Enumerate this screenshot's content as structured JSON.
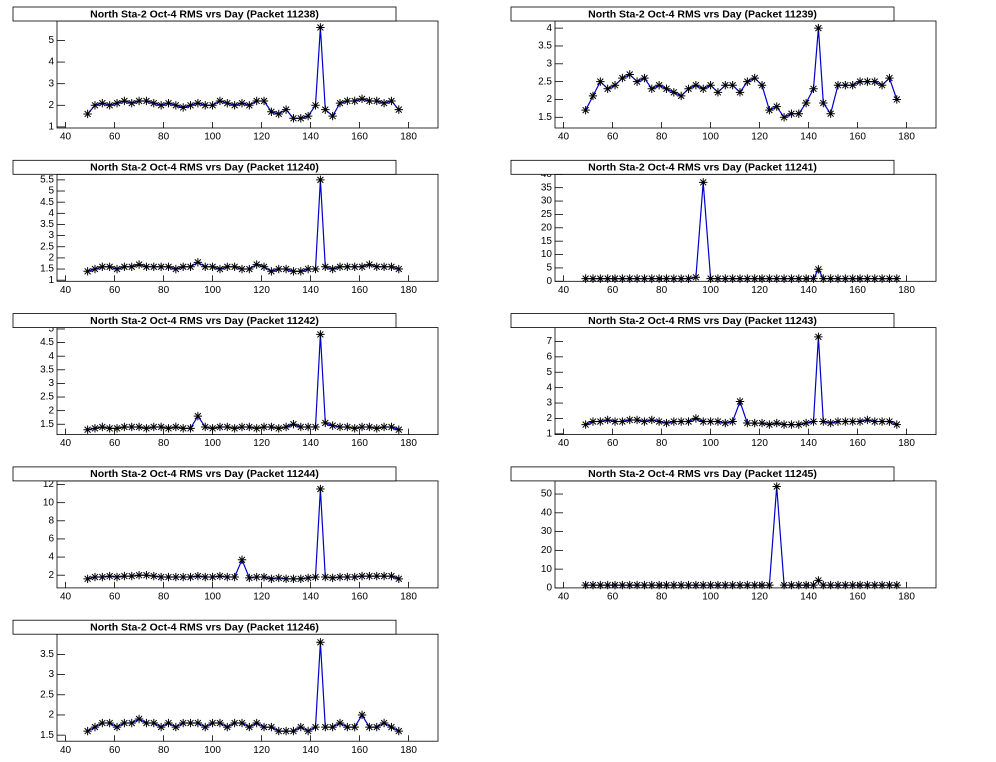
{
  "chart_data": [
    {
      "type": "line",
      "title": "North Sta-2 Oct-4 RMS vrs Day (Packet 11238)",
      "x": [
        49,
        52,
        55,
        58,
        61,
        64,
        67,
        70,
        73,
        76,
        79,
        82,
        85,
        88,
        91,
        94,
        97,
        100,
        103,
        106,
        109,
        112,
        115,
        118,
        121,
        124,
        127,
        130,
        133,
        136,
        139,
        142,
        144,
        146,
        149,
        152,
        155,
        158,
        161,
        164,
        167,
        170,
        173,
        176
      ],
      "values": [
        1.6,
        2.0,
        2.1,
        2.0,
        2.1,
        2.2,
        2.1,
        2.2,
        2.2,
        2.1,
        2.0,
        2.1,
        2.0,
        1.9,
        2.0,
        2.1,
        2.0,
        2.0,
        2.2,
        2.1,
        2.0,
        2.1,
        2.0,
        2.2,
        2.2,
        1.7,
        1.6,
        1.8,
        1.4,
        1.4,
        1.5,
        2.0,
        5.6,
        1.8,
        1.5,
        2.1,
        2.2,
        2.2,
        2.3,
        2.2,
        2.2,
        2.1,
        2.2,
        1.8
      ],
      "xlim": [
        36.5,
        192
      ],
      "xticks": [
        40,
        60,
        80,
        100,
        120,
        140,
        160,
        180
      ],
      "ylim": [
        0.95,
        5.9
      ],
      "yticks": [
        1,
        2,
        3,
        4,
        5
      ],
      "line_color": "#0000cc",
      "marker_color": "#000000"
    },
    {
      "type": "line",
      "title": "North Sta-2 Oct-4 RMS vrs Day (Packet 11239)",
      "x": [
        49,
        52,
        55,
        58,
        61,
        64,
        67,
        70,
        73,
        76,
        79,
        82,
        85,
        88,
        91,
        94,
        97,
        100,
        103,
        106,
        109,
        112,
        115,
        118,
        121,
        124,
        127,
        130,
        133,
        136,
        139,
        142,
        144,
        146,
        149,
        152,
        155,
        158,
        161,
        164,
        167,
        170,
        173,
        176
      ],
      "values": [
        1.7,
        2.1,
        2.5,
        2.3,
        2.4,
        2.6,
        2.7,
        2.5,
        2.6,
        2.3,
        2.4,
        2.3,
        2.2,
        2.1,
        2.3,
        2.4,
        2.3,
        2.4,
        2.2,
        2.4,
        2.4,
        2.2,
        2.5,
        2.6,
        2.4,
        1.7,
        1.8,
        1.5,
        1.6,
        1.6,
        1.9,
        2.3,
        4.0,
        1.9,
        1.6,
        2.4,
        2.4,
        2.4,
        2.5,
        2.5,
        2.5,
        2.4,
        2.6,
        2.0
      ],
      "xlim": [
        36.5,
        192
      ],
      "xticks": [
        40,
        60,
        80,
        100,
        120,
        140,
        160,
        180
      ],
      "ylim": [
        1.2,
        4.2
      ],
      "yticks": [
        1.5,
        2,
        2.5,
        3,
        3.5,
        4
      ],
      "line_color": "#0000cc",
      "marker_color": "#000000"
    },
    {
      "type": "line",
      "title": "North Sta-2 Oct-4 RMS vrs Day (Packet 11240)",
      "x": [
        49,
        52,
        55,
        58,
        61,
        64,
        67,
        70,
        73,
        76,
        79,
        82,
        85,
        88,
        91,
        94,
        97,
        100,
        103,
        106,
        109,
        112,
        115,
        118,
        121,
        124,
        127,
        130,
        133,
        136,
        139,
        142,
        144,
        146,
        149,
        152,
        155,
        158,
        161,
        164,
        167,
        170,
        173,
        176
      ],
      "values": [
        1.4,
        1.5,
        1.6,
        1.6,
        1.5,
        1.6,
        1.6,
        1.7,
        1.6,
        1.6,
        1.6,
        1.6,
        1.5,
        1.6,
        1.6,
        1.8,
        1.6,
        1.6,
        1.5,
        1.6,
        1.6,
        1.5,
        1.5,
        1.7,
        1.6,
        1.4,
        1.5,
        1.5,
        1.4,
        1.4,
        1.5,
        1.5,
        5.5,
        1.6,
        1.5,
        1.6,
        1.6,
        1.6,
        1.6,
        1.7,
        1.6,
        1.6,
        1.6,
        1.5
      ],
      "xlim": [
        36.5,
        192
      ],
      "xticks": [
        40,
        60,
        80,
        100,
        120,
        140,
        160,
        180
      ],
      "ylim": [
        0.95,
        5.75
      ],
      "yticks": [
        1,
        1.5,
        2,
        2.5,
        3,
        3.5,
        4,
        4.5,
        5,
        5.5
      ],
      "line_color": "#0000cc",
      "marker_color": "#000000"
    },
    {
      "type": "line",
      "title": "North Sta-2 Oct-4 RMS vrs Day (Packet 11241)",
      "x": [
        49,
        52,
        55,
        58,
        61,
        64,
        67,
        70,
        73,
        76,
        79,
        82,
        85,
        88,
        91,
        94,
        97,
        100,
        103,
        106,
        109,
        112,
        115,
        118,
        121,
        124,
        127,
        130,
        133,
        136,
        139,
        142,
        144,
        146,
        149,
        152,
        155,
        158,
        161,
        164,
        167,
        170,
        173,
        176
      ],
      "values": [
        1.0,
        1.0,
        1.0,
        1.0,
        1.0,
        1.0,
        1.0,
        1.0,
        1.0,
        1.0,
        1.0,
        1.0,
        1.0,
        1.0,
        1.0,
        1.5,
        37,
        1.0,
        1.0,
        1.0,
        1.0,
        1.0,
        1.0,
        1.0,
        1.0,
        1.0,
        1.0,
        1.0,
        1.0,
        1.0,
        1.0,
        1.0,
        4.5,
        1.0,
        1.0,
        1.0,
        1.0,
        1.0,
        1.0,
        1.0,
        1.0,
        1.0,
        1.0,
        1.0
      ],
      "xlim": [
        36.5,
        192
      ],
      "xticks": [
        40,
        60,
        80,
        100,
        120,
        140,
        160,
        180
      ],
      "ylim": [
        0,
        40
      ],
      "yticks": [
        0,
        5,
        10,
        15,
        20,
        25,
        30,
        35,
        40
      ],
      "line_color": "#0000cc",
      "marker_color": "#000000"
    },
    {
      "type": "line",
      "title": "North Sta-2 Oct-4 RMS vrs Day (Packet 11242)",
      "x": [
        49,
        52,
        55,
        58,
        61,
        64,
        67,
        70,
        73,
        76,
        79,
        82,
        85,
        88,
        91,
        94,
        97,
        100,
        103,
        106,
        109,
        112,
        115,
        118,
        121,
        124,
        127,
        130,
        133,
        136,
        139,
        142,
        144,
        146,
        149,
        152,
        155,
        158,
        161,
        164,
        167,
        170,
        173,
        176
      ],
      "values": [
        1.3,
        1.35,
        1.4,
        1.35,
        1.35,
        1.4,
        1.4,
        1.4,
        1.35,
        1.4,
        1.4,
        1.35,
        1.4,
        1.35,
        1.35,
        1.8,
        1.4,
        1.35,
        1.4,
        1.4,
        1.35,
        1.4,
        1.4,
        1.35,
        1.4,
        1.4,
        1.35,
        1.4,
        1.5,
        1.4,
        1.4,
        1.4,
        4.8,
        1.55,
        1.45,
        1.4,
        1.4,
        1.35,
        1.4,
        1.4,
        1.35,
        1.4,
        1.4,
        1.3
      ],
      "xlim": [
        36.5,
        192
      ],
      "xticks": [
        40,
        60,
        80,
        100,
        120,
        140,
        160,
        180
      ],
      "ylim": [
        1.12,
        5.05
      ],
      "yticks": [
        1.5,
        2,
        2.5,
        3,
        3.5,
        4,
        4.5,
        5
      ],
      "line_color": "#0000cc",
      "marker_color": "#000000"
    },
    {
      "type": "line",
      "title": "North Sta-2 Oct-4 RMS vrs Day (Packet 11243)",
      "x": [
        49,
        52,
        55,
        58,
        61,
        64,
        67,
        70,
        73,
        76,
        79,
        82,
        85,
        88,
        91,
        94,
        97,
        100,
        103,
        106,
        109,
        112,
        115,
        118,
        121,
        124,
        127,
        130,
        133,
        136,
        139,
        142,
        144,
        146,
        149,
        152,
        155,
        158,
        161,
        164,
        167,
        170,
        173,
        176
      ],
      "values": [
        1.6,
        1.8,
        1.8,
        1.9,
        1.8,
        1.8,
        1.9,
        1.9,
        1.8,
        1.9,
        1.8,
        1.7,
        1.8,
        1.8,
        1.8,
        2.0,
        1.8,
        1.8,
        1.8,
        1.7,
        1.8,
        3.1,
        1.7,
        1.7,
        1.7,
        1.6,
        1.7,
        1.6,
        1.6,
        1.6,
        1.7,
        1.8,
        7.3,
        1.8,
        1.7,
        1.8,
        1.8,
        1.8,
        1.8,
        1.9,
        1.8,
        1.8,
        1.8,
        1.6
      ],
      "xlim": [
        36.5,
        192
      ],
      "xticks": [
        40,
        60,
        80,
        100,
        120,
        140,
        160,
        180
      ],
      "ylim": [
        0.95,
        7.9
      ],
      "yticks": [
        1,
        2,
        3,
        4,
        5,
        6,
        7
      ],
      "line_color": "#0000cc",
      "marker_color": "#000000"
    },
    {
      "type": "line",
      "title": "North Sta-2 Oct-4 RMS vrs Day (Packet 11244)",
      "x": [
        49,
        52,
        55,
        58,
        61,
        64,
        67,
        70,
        73,
        76,
        79,
        82,
        85,
        88,
        91,
        94,
        97,
        100,
        103,
        106,
        109,
        112,
        115,
        118,
        121,
        124,
        127,
        130,
        133,
        136,
        139,
        142,
        144,
        146,
        149,
        152,
        155,
        158,
        161,
        164,
        167,
        170,
        173,
        176
      ],
      "values": [
        1.6,
        1.8,
        1.8,
        1.9,
        1.8,
        1.9,
        1.9,
        2.0,
        2.0,
        1.9,
        1.8,
        1.8,
        1.8,
        1.8,
        1.8,
        1.9,
        1.8,
        1.8,
        1.9,
        1.8,
        1.8,
        3.7,
        1.7,
        1.8,
        1.8,
        1.6,
        1.7,
        1.6,
        1.6,
        1.6,
        1.7,
        1.8,
        11.5,
        1.8,
        1.7,
        1.8,
        1.8,
        1.8,
        1.9,
        1.9,
        1.9,
        1.9,
        1.9,
        1.6
      ],
      "xlim": [
        36.5,
        192
      ],
      "xticks": [
        40,
        60,
        80,
        100,
        120,
        140,
        160,
        180
      ],
      "ylim": [
        0.6,
        12.4
      ],
      "yticks": [
        2,
        4,
        6,
        8,
        10,
        12
      ],
      "line_color": "#0000cc",
      "marker_color": "#000000"
    },
    {
      "type": "line",
      "title": "North Sta-2 Oct-4 RMS vrs Day (Packet 11245)",
      "x": [
        49,
        52,
        55,
        58,
        61,
        64,
        67,
        70,
        73,
        76,
        79,
        82,
        85,
        88,
        91,
        94,
        97,
        100,
        103,
        106,
        109,
        112,
        115,
        118,
        121,
        124,
        127,
        130,
        133,
        136,
        139,
        142,
        144,
        146,
        149,
        152,
        155,
        158,
        161,
        164,
        167,
        170,
        173,
        176
      ],
      "values": [
        1.5,
        1.5,
        1.5,
        1.5,
        1.5,
        1.5,
        1.5,
        1.5,
        1.5,
        1.5,
        1.5,
        1.5,
        1.5,
        1.5,
        1.5,
        1.5,
        1.5,
        1.5,
        1.5,
        1.5,
        1.5,
        1.5,
        1.5,
        1.5,
        1.5,
        1.5,
        54,
        1.5,
        1.5,
        1.5,
        1.5,
        1.5,
        4,
        1.5,
        1.5,
        1.5,
        1.5,
        1.5,
        1.5,
        1.5,
        1.5,
        1.5,
        1.5,
        1.5
      ],
      "xlim": [
        36.5,
        192
      ],
      "xticks": [
        40,
        60,
        80,
        100,
        120,
        140,
        160,
        180
      ],
      "ylim": [
        0,
        57
      ],
      "yticks": [
        0,
        10,
        20,
        30,
        40,
        50
      ],
      "line_color": "#0000cc",
      "marker_color": "#000000"
    },
    {
      "type": "line",
      "title": "North Sta-2 Oct-4 RMS vrs Day (Packet 11246)",
      "x": [
        49,
        52,
        55,
        58,
        61,
        64,
        67,
        70,
        73,
        76,
        79,
        82,
        85,
        88,
        91,
        94,
        97,
        100,
        103,
        106,
        109,
        112,
        115,
        118,
        121,
        124,
        127,
        130,
        133,
        136,
        139,
        142,
        144,
        146,
        149,
        152,
        155,
        158,
        161,
        164,
        167,
        170,
        173,
        176
      ],
      "values": [
        1.6,
        1.7,
        1.8,
        1.8,
        1.7,
        1.8,
        1.8,
        1.9,
        1.8,
        1.8,
        1.7,
        1.8,
        1.7,
        1.8,
        1.8,
        1.8,
        1.7,
        1.8,
        1.8,
        1.7,
        1.8,
        1.8,
        1.7,
        1.8,
        1.7,
        1.7,
        1.6,
        1.6,
        1.6,
        1.7,
        1.6,
        1.7,
        3.8,
        1.7,
        1.7,
        1.8,
        1.7,
        1.7,
        2.0,
        1.7,
        1.7,
        1.8,
        1.7,
        1.6
      ],
      "xlim": [
        36.5,
        192
      ],
      "xticks": [
        40,
        60,
        80,
        100,
        120,
        140,
        160,
        180
      ],
      "ylim": [
        1.35,
        4.0
      ],
      "yticks": [
        1.5,
        2,
        2.5,
        3,
        3.5
      ],
      "line_color": "#0000cc",
      "marker_color": "#000000"
    }
  ]
}
